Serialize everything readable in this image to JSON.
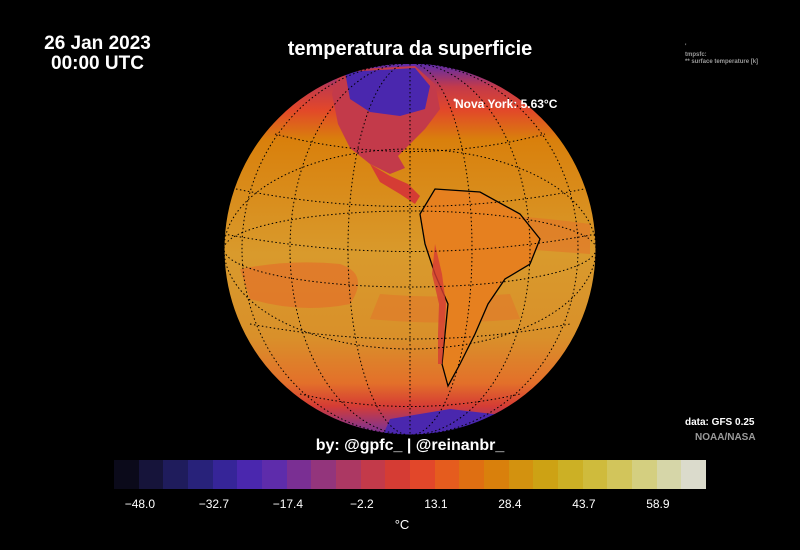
{
  "header": {
    "date": "26 Jan 2023",
    "time": "00:00 UTC",
    "title": "temperatura da superficie"
  },
  "meta": {
    "line1": "'",
    "line2": "tmpsfc:",
    "line3": "** surface temperature [k]"
  },
  "map": {
    "projection": "orthographic",
    "view_center": "Americas",
    "annotation": "Nova York: 5.63°C",
    "colors": {
      "ocean": "#d99a2c",
      "warm_ocean": "#e3712a",
      "land": "#e6801f",
      "cold": "#5a2aa8",
      "gridline": "#000000"
    }
  },
  "credit": "by: @gpfc_ | @reinanbr_",
  "source": {
    "data": "data: GFS 0.25",
    "agency": "NOAA/NASA"
  },
  "legend": {
    "unit": "°C",
    "ticks": [
      "−48.0",
      "−32.7",
      "−17.4",
      "−2.2",
      "13.1",
      "28.4",
      "43.7",
      "58.9"
    ],
    "colors": [
      "#0b0a1a",
      "#16143a",
      "#1f1c5c",
      "#28227a",
      "#362598",
      "#4a27ae",
      "#5e2cab",
      "#7a2f93",
      "#93357c",
      "#ac3863",
      "#c33a4a",
      "#d53c34",
      "#e2472a",
      "#e55c1e",
      "#df6f12",
      "#d9800c",
      "#d3920f",
      "#cda214",
      "#ccb025",
      "#cfbb3c",
      "#d2c55b",
      "#d4cf80",
      "#d6d6a8",
      "#dbdbcc"
    ]
  }
}
